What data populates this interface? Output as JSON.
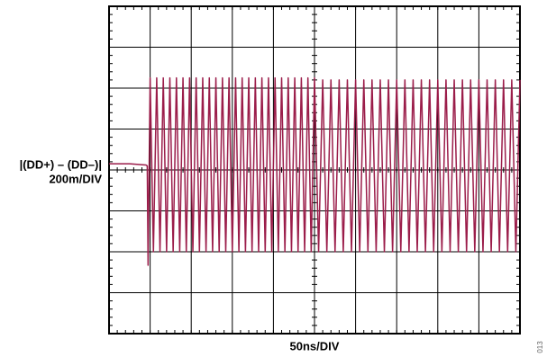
{
  "chart_data": {
    "type": "line",
    "ylabel": "|(DD+) – (DD–)|",
    "ylabel_scale": "200m/DIV",
    "xlabel": "50ns/DIV",
    "figure_id": "013",
    "color": "#9b1d4a",
    "grid": true,
    "xlim": [
      0,
      10
    ],
    "ylim": [
      0,
      8
    ],
    "xticks": [
      0,
      1,
      2,
      3,
      4,
      5,
      6,
      7,
      8,
      9,
      10
    ],
    "yticks": [
      0,
      1,
      2,
      3,
      4,
      5,
      6,
      7,
      8
    ],
    "x": [
      0,
      0.5,
      0.9,
      0.93,
      0.95,
      1.0,
      1.08,
      1.16,
      1.24,
      1.32,
      1.4,
      1.48,
      1.56,
      1.64,
      1.72,
      1.8,
      1.88,
      1.96,
      2.04,
      2.12,
      2.2,
      2.28,
      2.36,
      2.44,
      2.52,
      2.6,
      2.68,
      2.76,
      2.84,
      2.92,
      3.0,
      3.08,
      3.16,
      3.24,
      3.32,
      3.4,
      3.48,
      3.56,
      3.64,
      3.72,
      3.8,
      3.88,
      3.96,
      4.04,
      4.12,
      4.2,
      4.28,
      4.36,
      4.44,
      4.52,
      4.6,
      4.68,
      4.76,
      4.84,
      4.92,
      5.0,
      5.1,
      5.2,
      5.3,
      5.4,
      5.5,
      5.6,
      5.7,
      5.8,
      5.9,
      6.0,
      6.1,
      6.2,
      6.3,
      6.4,
      6.5,
      6.6,
      6.7,
      6.8,
      6.9,
      7.0,
      7.1,
      7.2,
      7.3,
      7.4,
      7.5,
      7.6,
      7.7,
      7.8,
      7.9,
      8.0,
      8.1,
      8.2,
      8.3,
      8.4,
      8.5,
      8.6,
      8.7,
      8.8,
      8.9,
      9.0,
      9.1,
      9.2,
      9.3,
      9.4,
      9.5,
      9.6,
      9.7,
      9.8,
      9.9,
      10.0
    ],
    "values": [
      4.15,
      4.15,
      4.12,
      4.1,
      1.67,
      6.25,
      2.0,
      6.25,
      2.0,
      6.25,
      2.0,
      6.25,
      2.0,
      6.25,
      2.0,
      6.25,
      2.0,
      6.25,
      2.0,
      6.25,
      2.0,
      6.25,
      2.0,
      6.25,
      2.0,
      6.25,
      2.0,
      6.25,
      2.0,
      6.25,
      2.0,
      6.25,
      2.0,
      6.25,
      2.0,
      6.25,
      2.0,
      6.25,
      2.0,
      6.25,
      2.0,
      6.25,
      2.0,
      6.25,
      2.0,
      6.25,
      2.0,
      6.25,
      2.0,
      6.25,
      2.0,
      6.25,
      2.0,
      6.25,
      2.0,
      6.25,
      2.0,
      6.2,
      2.0,
      6.2,
      2.0,
      6.2,
      2.0,
      6.2,
      2.0,
      6.2,
      2.0,
      6.2,
      2.0,
      6.2,
      2.0,
      6.2,
      2.0,
      6.2,
      2.0,
      6.2,
      2.0,
      6.2,
      2.0,
      6.2,
      2.0,
      6.2,
      2.0,
      6.2,
      2.0,
      6.2,
      2.0,
      6.2,
      2.0,
      6.2,
      2.0,
      6.2,
      2.0,
      6.2,
      2.0,
      6.2,
      2.0,
      6.2,
      2.0,
      6.2,
      2.0,
      6.2,
      2.0,
      6.2,
      2.0,
      6.2
    ]
  }
}
